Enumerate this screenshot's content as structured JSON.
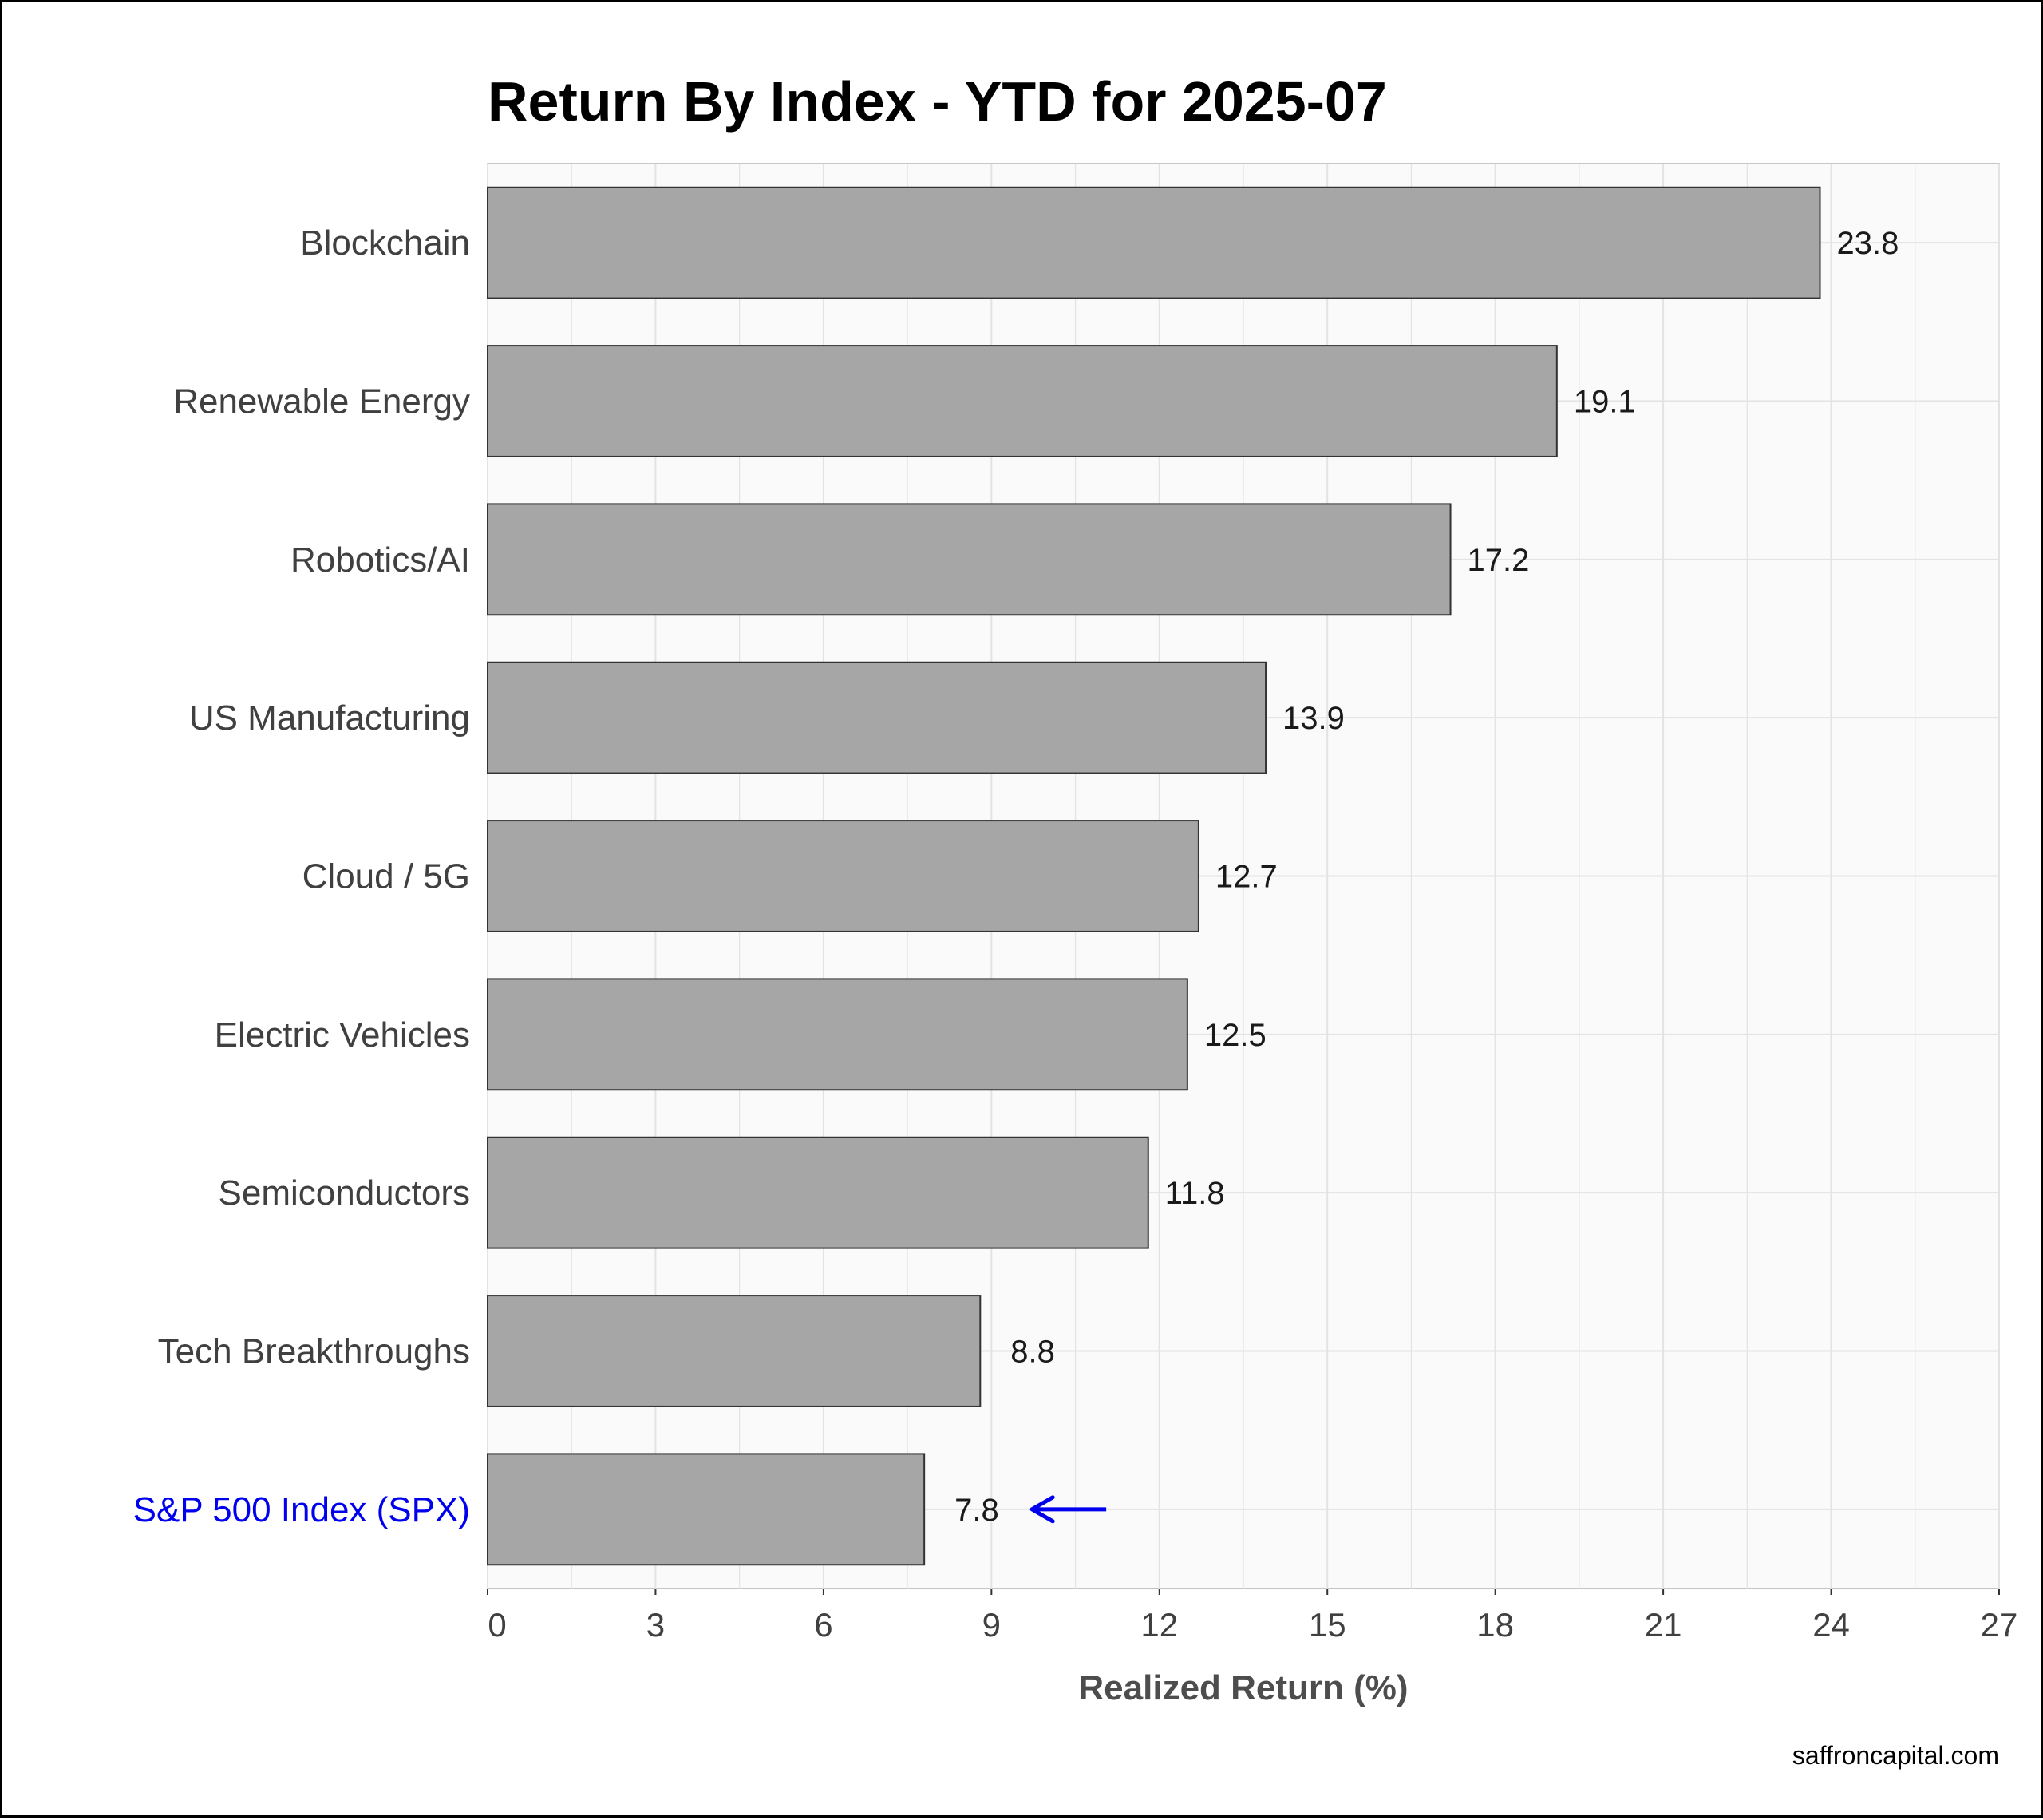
{
  "chart_data": {
    "type": "bar",
    "orientation": "horizontal",
    "title": "Return By Index - YTD for 2025-07",
    "xlabel": "Realized Return (%)",
    "ylabel": "",
    "xlim": [
      0,
      27
    ],
    "xticks": [
      0,
      3,
      6,
      9,
      12,
      15,
      18,
      21,
      24,
      27
    ],
    "categories": [
      "Blockchain",
      "Renewable Energy",
      "Robotics/AI",
      "US Manufacturing",
      "Cloud / 5G",
      "Electric Vehicles",
      "Semiconductors",
      "Tech Breakthroughs",
      "S&P 500 Index (SPX)"
    ],
    "values": [
      23.8,
      19.1,
      17.2,
      13.9,
      12.7,
      12.5,
      11.8,
      8.8,
      7.8
    ],
    "value_labels": [
      "23.8",
      "19.1",
      "17.2",
      "13.9",
      "12.7",
      "12.5",
      "11.8",
      "8.8",
      "7.8"
    ],
    "highlight_category": "S&P 500 Index (SPX)",
    "grid": true,
    "legend": "none"
  },
  "colors": {
    "bar_fill": "#a6a6a6",
    "bar_stroke": "#333333",
    "panel_background": "#fafafa",
    "grid": "#e3e3e3",
    "highlight": "#0000ee"
  },
  "source": "saffroncapital.com"
}
